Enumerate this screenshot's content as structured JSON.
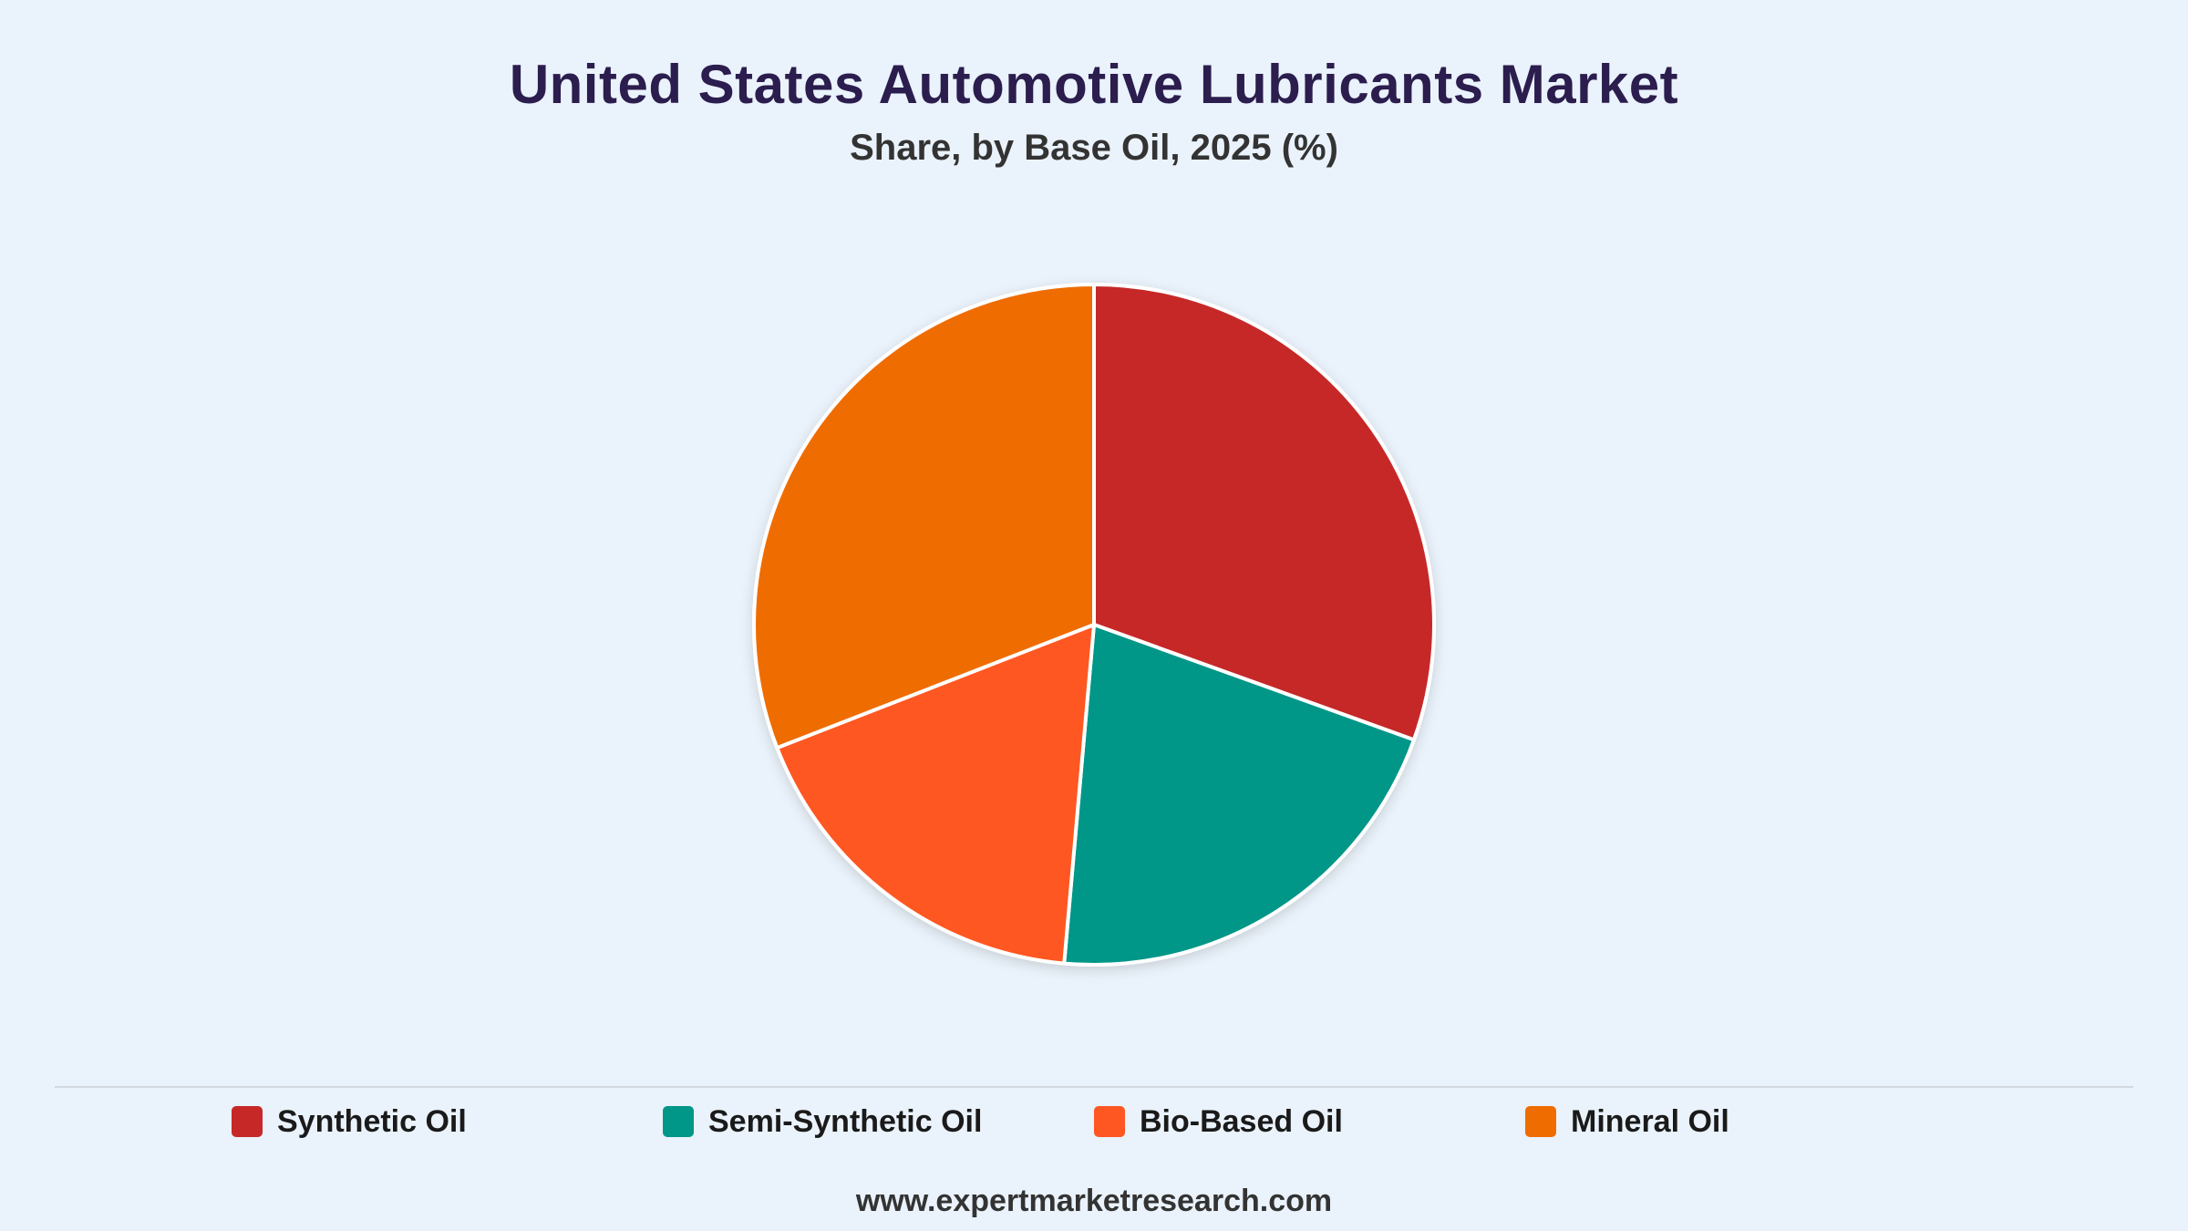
{
  "title": "United States Automotive Lubricants Market",
  "subtitle": "Share, by Base Oil, 2025 (%)",
  "footer": "www.expertmarketresearch.com",
  "chart_data": {
    "type": "pie",
    "start": "12 o'clock",
    "direction": "clockwise",
    "legend_position": "bottom",
    "labels": [
      "Synthetic Oil",
      "Semi-Synthetic Oil",
      "Bio-Based Oil",
      "Mineral Oil"
    ],
    "values": [
      30.5,
      20.9,
      17.7,
      30.9
    ],
    "colors": [
      "#c62828",
      "#009688",
      "#ff5722",
      "#ef6c00"
    ],
    "slice_border_color": "#ffffff"
  }
}
